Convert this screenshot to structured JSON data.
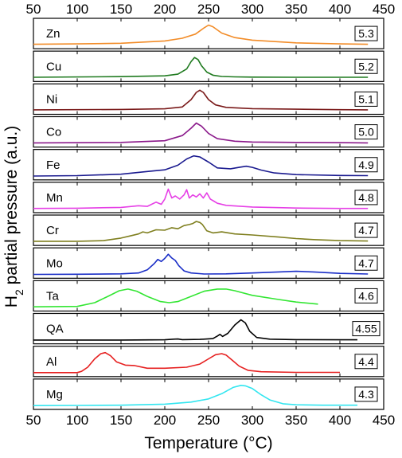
{
  "chart_data": {
    "type": "line",
    "xlabel": "Temperature (°C)",
    "ylabel_main": "H",
    "ylabel_sub": "2",
    "ylabel_rest": " partial pressure (a.u.)",
    "xlim": [
      50,
      450
    ],
    "xticks": [
      50,
      100,
      150,
      200,
      250,
      300,
      350,
      400,
      450
    ],
    "xtick_labels": [
      "50",
      "100",
      "150",
      "200",
      "250",
      "300",
      "350",
      "400",
      "450"
    ],
    "series": [
      {
        "name": "Zn",
        "value": "5.3",
        "color": "#f28c28",
        "x": [
          50,
          100,
          150,
          200,
          220,
          235,
          245,
          250,
          255,
          265,
          280,
          300,
          350,
          400,
          432
        ],
        "y": [
          0.06,
          0.08,
          0.11,
          0.22,
          0.35,
          0.55,
          0.85,
          0.98,
          0.9,
          0.6,
          0.38,
          0.26,
          0.13,
          0.08,
          0.06
        ]
      },
      {
        "name": "Cu",
        "value": "5.2",
        "color": "#1f7a1f",
        "x": [
          50,
          150,
          200,
          215,
          225,
          230,
          234,
          238,
          242,
          248,
          255,
          265,
          280,
          300,
          350,
          400,
          432
        ],
        "y": [
          0.05,
          0.08,
          0.12,
          0.2,
          0.45,
          0.8,
          1.0,
          0.9,
          0.6,
          0.3,
          0.15,
          0.09,
          0.07,
          0.06,
          0.05,
          0.05,
          0.05
        ]
      },
      {
        "name": "Ni",
        "value": "5.1",
        "color": "#7a1a1a",
        "x": [
          50,
          150,
          200,
          220,
          230,
          236,
          240,
          244,
          250,
          258,
          270,
          300,
          350,
          400,
          432
        ],
        "y": [
          0.06,
          0.08,
          0.11,
          0.2,
          0.55,
          0.9,
          1.0,
          0.9,
          0.55,
          0.3,
          0.18,
          0.12,
          0.09,
          0.07,
          0.06
        ]
      },
      {
        "name": "Co",
        "value": "5.0",
        "color": "#8b1a8b",
        "x": [
          50,
          150,
          200,
          220,
          230,
          236,
          242,
          250,
          260,
          280,
          300,
          350,
          400,
          432
        ],
        "y": [
          0.05,
          0.07,
          0.15,
          0.4,
          0.75,
          1.0,
          0.85,
          0.5,
          0.25,
          0.13,
          0.09,
          0.07,
          0.06,
          0.05
        ]
      },
      {
        "name": "Fe",
        "value": "4.9",
        "color": "#1a1a8f",
        "x": [
          50,
          100,
          150,
          180,
          200,
          215,
          225,
          233,
          240,
          250,
          260,
          275,
          285,
          293,
          300,
          310,
          325,
          350,
          400,
          432
        ],
        "y": [
          0.03,
          0.05,
          0.12,
          0.25,
          0.33,
          0.55,
          0.85,
          1.0,
          0.95,
          0.7,
          0.42,
          0.38,
          0.45,
          0.5,
          0.45,
          0.32,
          0.18,
          0.1,
          0.06,
          0.05
        ]
      },
      {
        "name": "Mn",
        "value": "4.8",
        "color": "#e640e6",
        "x": [
          50,
          100,
          150,
          170,
          180,
          190,
          196,
          200,
          204,
          208,
          212,
          217,
          222,
          225,
          228,
          232,
          236,
          240,
          244,
          248,
          252,
          256,
          260,
          270,
          300,
          350,
          400,
          432
        ],
        "y": [
          0.05,
          0.06,
          0.1,
          0.18,
          0.15,
          0.35,
          0.25,
          0.5,
          0.98,
          0.55,
          0.65,
          0.5,
          0.7,
          0.95,
          0.55,
          0.7,
          0.6,
          0.75,
          0.55,
          0.8,
          0.5,
          0.4,
          0.3,
          0.2,
          0.12,
          0.07,
          0.05,
          0.05
        ]
      },
      {
        "name": "Cr",
        "value": "4.7",
        "color": "#7f7f1f",
        "x": [
          50,
          100,
          130,
          150,
          160,
          170,
          175,
          180,
          190,
          200,
          208,
          215,
          222,
          228,
          232,
          236,
          240,
          243,
          248,
          255,
          265,
          280,
          300,
          330,
          350,
          370,
          400,
          432
        ],
        "y": [
          0.05,
          0.05,
          0.08,
          0.2,
          0.3,
          0.4,
          0.5,
          0.45,
          0.6,
          0.58,
          0.7,
          0.65,
          0.8,
          0.85,
          0.9,
          1.0,
          0.95,
          0.85,
          0.55,
          0.45,
          0.5,
          0.4,
          0.35,
          0.25,
          0.18,
          0.13,
          0.08,
          0.06
        ]
      },
      {
        "name": "Mo",
        "value": "4.7",
        "color": "#1a2ec7",
        "x": [
          50,
          100,
          150,
          170,
          180,
          188,
          192,
          196,
          200,
          204,
          208,
          212,
          216,
          222,
          230,
          245,
          270,
          300,
          330,
          350,
          370,
          400,
          432
        ],
        "y": [
          0.03,
          0.04,
          0.06,
          0.1,
          0.25,
          0.55,
          0.75,
          0.65,
          0.8,
          1.0,
          0.82,
          0.7,
          0.45,
          0.2,
          0.1,
          0.05,
          0.06,
          0.1,
          0.15,
          0.18,
          0.15,
          0.08,
          0.05
        ]
      },
      {
        "name": "Ta",
        "value": "4.6",
        "color": "#33e633",
        "x": [
          50,
          100,
          120,
          135,
          148,
          158,
          168,
          180,
          195,
          205,
          215,
          230,
          245,
          260,
          270,
          280,
          300,
          330,
          350,
          375
        ],
        "y": [
          0.05,
          0.07,
          0.25,
          0.55,
          0.82,
          0.9,
          0.8,
          0.55,
          0.3,
          0.25,
          0.3,
          0.55,
          0.8,
          0.9,
          0.9,
          0.82,
          0.6,
          0.4,
          0.28,
          0.18
        ]
      },
      {
        "name": "QA",
        "value": "4.55",
        "color": "#000000",
        "x": [
          50,
          150,
          200,
          210,
          215,
          220,
          240,
          255,
          260,
          263,
          266,
          272,
          280,
          287,
          292,
          297,
          305,
          320,
          350,
          400,
          420
        ],
        "y": [
          0.03,
          0.03,
          0.04,
          0.07,
          0.08,
          0.05,
          0.06,
          0.1,
          0.22,
          0.3,
          0.2,
          0.35,
          0.75,
          1.0,
          0.85,
          0.45,
          0.15,
          0.07,
          0.05,
          0.04,
          0.04
        ]
      },
      {
        "name": "Al",
        "value": "4.4",
        "color": "#e62020",
        "x": [
          50,
          100,
          105,
          112,
          120,
          127,
          132,
          138,
          145,
          155,
          165,
          180,
          200,
          225,
          240,
          250,
          258,
          265,
          270,
          278,
          285,
          295,
          310,
          350,
          400
        ],
        "y": [
          0.04,
          0.04,
          0.1,
          0.3,
          0.7,
          0.95,
          1.0,
          0.85,
          0.55,
          0.4,
          0.38,
          0.25,
          0.25,
          0.3,
          0.45,
          0.7,
          0.9,
          0.95,
          0.88,
          0.6,
          0.35,
          0.15,
          0.08,
          0.05,
          0.05
        ]
      },
      {
        "name": "Mg",
        "value": "4.3",
        "color": "#33e6f0",
        "x": [
          50,
          100,
          150,
          200,
          230,
          250,
          265,
          278,
          287,
          292,
          300,
          310,
          320,
          335,
          350,
          380,
          420
        ],
        "y": [
          0.03,
          0.04,
          0.05,
          0.1,
          0.2,
          0.35,
          0.6,
          0.9,
          1.0,
          0.98,
          0.85,
          0.55,
          0.3,
          0.12,
          0.07,
          0.05,
          0.05
        ]
      }
    ]
  }
}
